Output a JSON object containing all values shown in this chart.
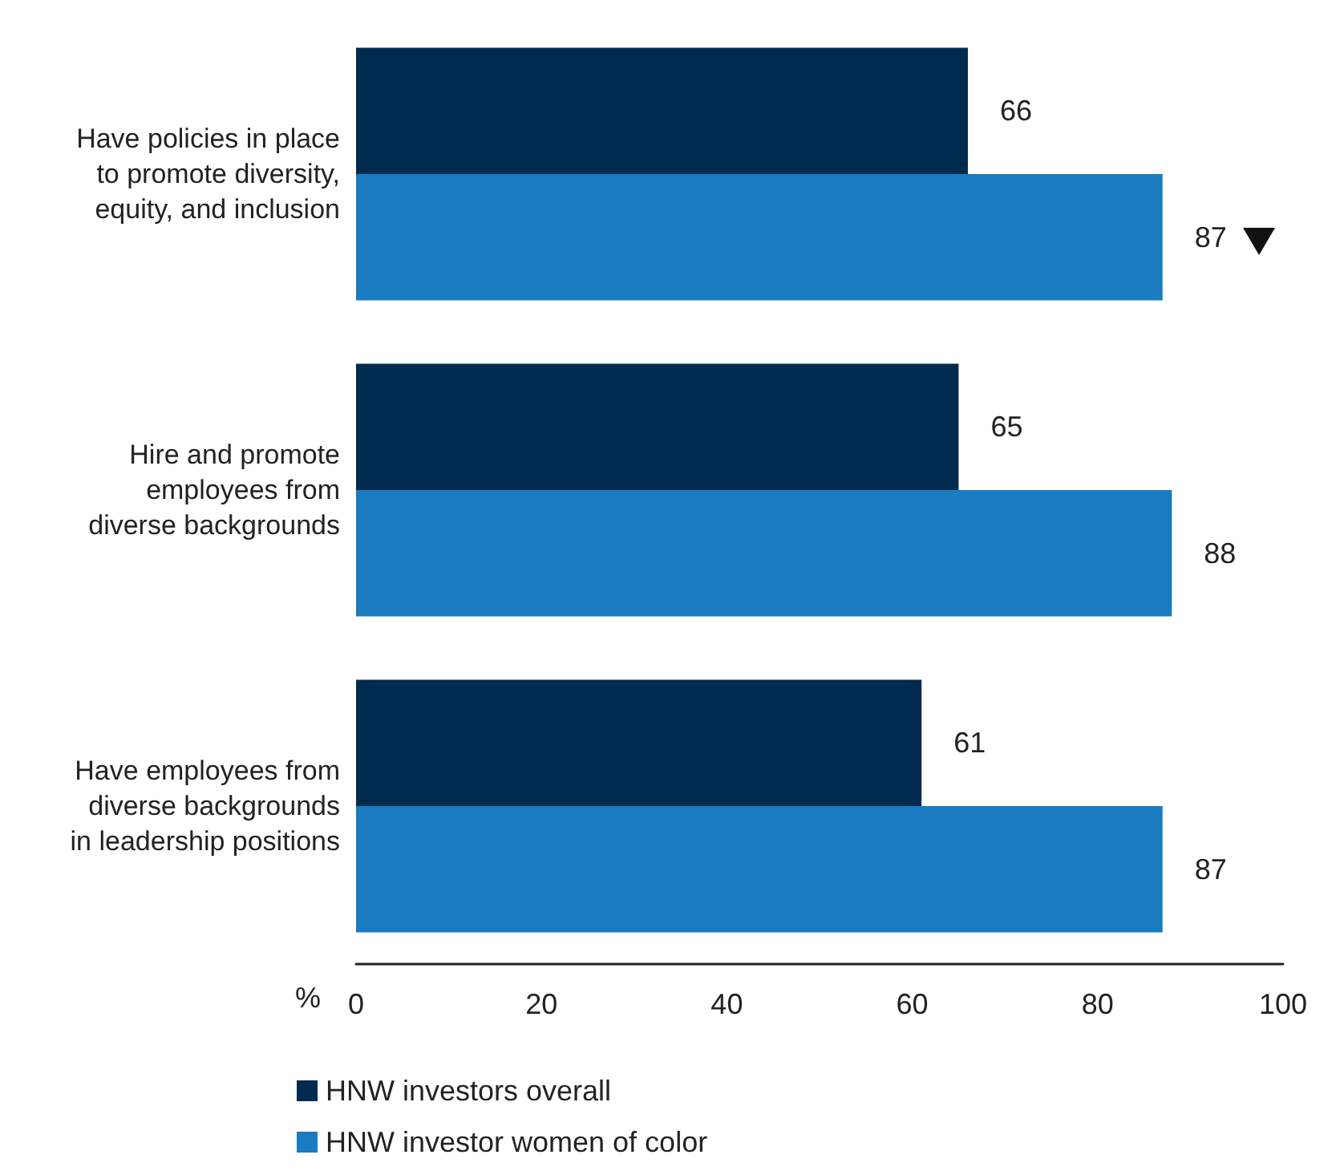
{
  "chart_data": {
    "type": "bar",
    "orientation": "horizontal",
    "xlabel": "%",
    "categories": [
      "Have policies in place\nto promote diversity,\nequity, and inclusion",
      "Hire and promote\nemployees from\ndiverse backgrounds",
      "Have employees from\ndiverse backgrounds\nin leadership positions"
    ],
    "series": [
      {
        "name": "HNW investors overall",
        "color": "#002b4f",
        "values": [
          66,
          65,
          61
        ]
      },
      {
        "name": "HNW investor women of color",
        "color": "#1a7bc0",
        "values": [
          87,
          88,
          87
        ]
      }
    ],
    "xlim": [
      0,
      100
    ],
    "xticks": [
      0,
      20,
      40,
      60,
      80,
      100
    ],
    "data_labels": true,
    "grid": false,
    "legend": "bottom left"
  }
}
